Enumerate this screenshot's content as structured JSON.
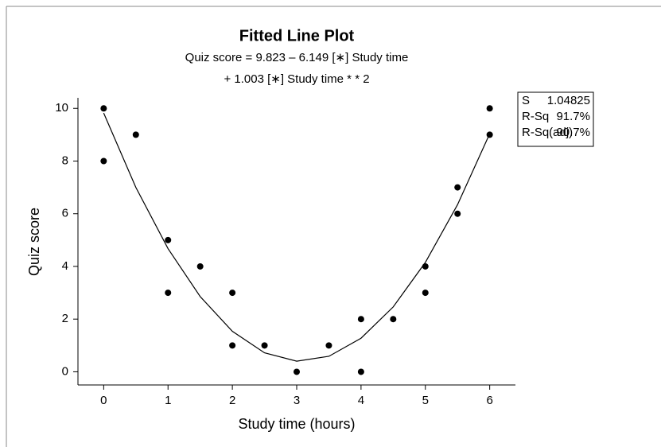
{
  "chart_data": {
    "type": "scatter",
    "title": "Fitted Line Plot",
    "subtitle": [
      "Quiz score = 9.823 – 6.149 [∗] Study time",
      "+ 1.003 [∗] Study time * * 2"
    ],
    "x_label": "Study time (hours)",
    "y_label": "Quiz score",
    "x": [
      0,
      0,
      0.5,
      1,
      1,
      1.5,
      2,
      2,
      2.5,
      3,
      3.5,
      4,
      4,
      4.5,
      5,
      5,
      5.5,
      5.5,
      6,
      6
    ],
    "values": [
      10,
      8,
      9,
      5,
      3,
      4,
      3,
      1,
      1,
      0,
      1,
      2,
      0,
      2,
      4,
      3,
      7,
      6,
      10,
      9
    ],
    "color": "#000000",
    "fit": {
      "x": [
        0,
        0.5,
        1,
        1.5,
        2,
        2.5,
        3,
        3.5,
        4,
        4.5,
        5,
        5.5,
        6
      ],
      "values": [
        9.823,
        6.999,
        4.677,
        2.856,
        1.537,
        0.719,
        0.403,
        0.588,
        1.275,
        2.463,
        4.153,
        6.344,
        9.037
      ]
    },
    "stats": [
      [
        "S",
        "1.04825"
      ],
      [
        "R-Sq",
        "91.7%"
      ],
      [
        "R-Sq(adj)",
        "90.7%"
      ]
    ],
    "xlim": [
      -0.4,
      6.4
    ],
    "xticks": [
      0,
      1,
      2,
      3,
      4,
      5,
      6
    ],
    "ylim": [
      -0.5,
      10.4
    ],
    "yticks": [
      0,
      2,
      4,
      6,
      8,
      10
    ]
  }
}
